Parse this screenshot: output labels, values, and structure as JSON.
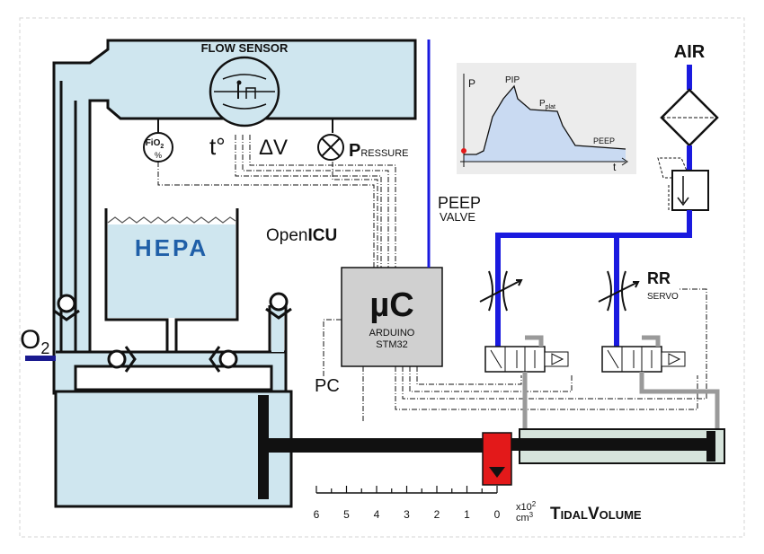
{
  "labels": {
    "flow_sensor": "FLOW SENSOR",
    "air": "AIR",
    "fio2_top": "FiO",
    "fio2_sub": "2",
    "fio2_pct": "%",
    "temp": "t°",
    "delta_v": "ΔV",
    "pressure_p": "P",
    "pressure_rest": "RESSURE",
    "hepa": "HEPA",
    "open": "Open",
    "icu": "ICU",
    "peep": "PEEP",
    "valve": "VALVE",
    "uc": "µC",
    "arduino": "ARDUINO",
    "stm32": "STM32",
    "rr": "RR",
    "servo": "SERVO",
    "o2": "O",
    "o2_sub": "2",
    "pc": "PC",
    "tidal_t": "T",
    "tidal_idal": "IDAL",
    "tidal_v": "V",
    "tidal_olume": "OLUME"
  },
  "scale": {
    "ticks": [
      "6",
      "5",
      "4",
      "3",
      "2",
      "1",
      "0"
    ],
    "unit_top": "x10",
    "unit_top_sup": "2",
    "unit_bottom": "cm",
    "unit_bottom_sup": "3"
  },
  "waveform": {
    "y_axis": "P",
    "x_axis": "t",
    "pip": "PIP",
    "pplat_main": "P",
    "pplat_sub": "plat",
    "peep": "PEEP"
  },
  "colors": {
    "fluid": "#cfe6ef",
    "pipe_blue": "#1a1adf",
    "piston_red": "#e3191a",
    "wave_fill": "#c9daf2",
    "inset_bg": "#ececec",
    "mcu_fill": "#d0d0d0"
  }
}
